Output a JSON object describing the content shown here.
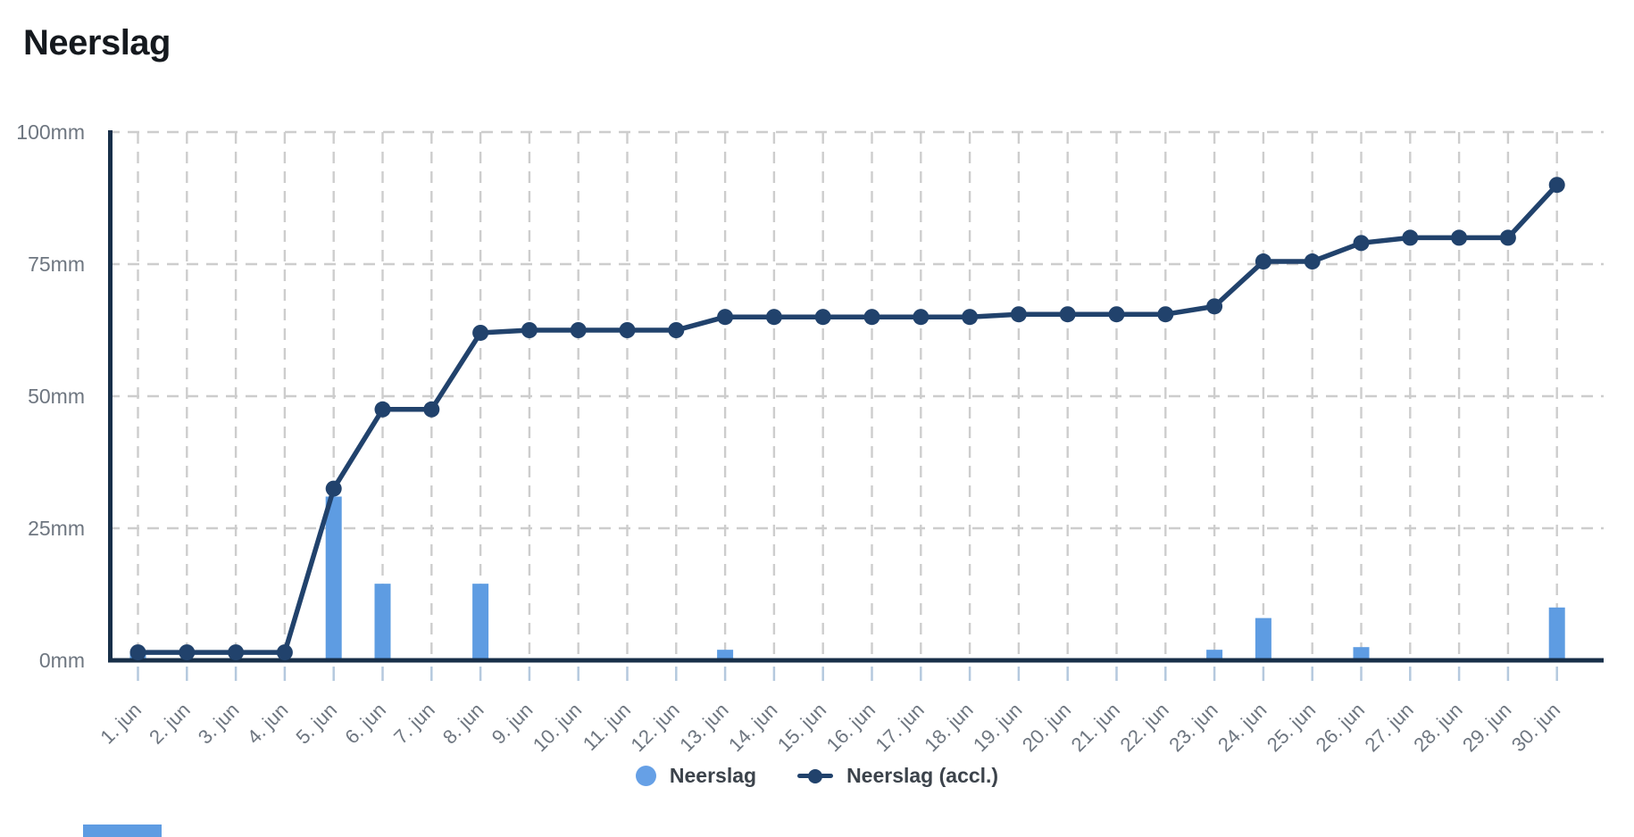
{
  "title": "Neerslag",
  "colors": {
    "background": "#FFFFFF",
    "bar": "#5E9CE2",
    "line": "#21426C",
    "axis": "#182F49",
    "grid": "#CDCDCD",
    "tick": "#B5C9DE",
    "axis_label": "#6E7680",
    "legend_text": "#3C434B",
    "legend_dot": "#66A0E6",
    "title_text": "#15191E"
  },
  "y_axis": {
    "unit": "mm",
    "labels": [
      "100mm",
      "75mm",
      "50mm",
      "25mm",
      "0mm"
    ],
    "values": [
      100,
      75,
      50,
      25,
      0
    ]
  },
  "legend": {
    "items": [
      {
        "label": "Neerslag",
        "marker": "circle"
      },
      {
        "label": "Neerslag (accl.)",
        "marker": "line-dot"
      }
    ]
  },
  "chart_data": {
    "type": "bar+line",
    "title": "Neerslag",
    "categories": [
      "1. jun",
      "2. jun",
      "3. jun",
      "4. jun",
      "5. jun",
      "6. jun",
      "7. jun",
      "8. jun",
      "9. jun",
      "10. jun",
      "11. jun",
      "12. jun",
      "13. jun",
      "14. jun",
      "15. jun",
      "16. jun",
      "17. jun",
      "18. jun",
      "19. jun",
      "20. jun",
      "21. jun",
      "22. jun",
      "23. jun",
      "24. jun",
      "25. jun",
      "26. jun",
      "27. jun",
      "28. jun",
      "29. jun",
      "30. jun"
    ],
    "series": [
      {
        "name": "Neerslag",
        "type": "bar",
        "color": "#5E9CE2",
        "values": [
          1.5,
          0,
          0,
          0,
          31,
          14.5,
          0,
          14.5,
          0,
          0,
          0,
          0,
          2,
          0,
          0,
          0,
          0,
          0,
          0,
          0,
          0,
          0,
          2,
          8,
          0,
          2.5,
          0,
          0,
          0,
          10
        ]
      },
      {
        "name": "Neerslag (accl.)",
        "type": "line",
        "color": "#21426C",
        "values": [
          1.5,
          1.5,
          1.5,
          1.5,
          32.5,
          47.5,
          47.5,
          62,
          62.5,
          62.5,
          62.5,
          62.5,
          65,
          65,
          65,
          65,
          65,
          65,
          65.5,
          65.5,
          65.5,
          65.5,
          67,
          75.5,
          75.5,
          79,
          80,
          80,
          80,
          90
        ]
      }
    ],
    "xlabel": "",
    "ylabel": "mm",
    "ylim": [
      0,
      100
    ],
    "yticks": [
      0,
      25,
      50,
      75,
      100
    ],
    "grid": true,
    "legend_position": "bottom"
  }
}
